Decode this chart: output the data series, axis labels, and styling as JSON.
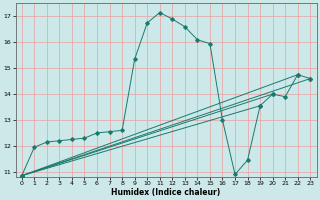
{
  "xlabel": "Humidex (Indice chaleur)",
  "bg_color": "#cce8e8",
  "grid_color": "#ff9999",
  "line_color": "#1a7a6e",
  "xlim": [
    -0.5,
    23.5
  ],
  "ylim": [
    10.8,
    17.5
  ],
  "xticks": [
    0,
    1,
    2,
    3,
    4,
    5,
    6,
    7,
    8,
    9,
    10,
    11,
    12,
    13,
    14,
    15,
    16,
    17,
    18,
    19,
    20,
    21,
    22,
    23
  ],
  "yticks": [
    11,
    12,
    13,
    14,
    15,
    16,
    17
  ],
  "series": [
    [
      0,
      10.85
    ],
    [
      1,
      11.95
    ],
    [
      2,
      12.15
    ],
    [
      3,
      12.2
    ],
    [
      4,
      12.25
    ],
    [
      5,
      12.3
    ],
    [
      6,
      12.5
    ],
    [
      7,
      12.55
    ],
    [
      8,
      12.6
    ],
    [
      9,
      15.35
    ],
    [
      10,
      16.75
    ],
    [
      11,
      17.15
    ],
    [
      12,
      16.9
    ],
    [
      13,
      16.6
    ],
    [
      14,
      16.1
    ],
    [
      15,
      15.95
    ],
    [
      16,
      13.0
    ],
    [
      17,
      10.9
    ],
    [
      18,
      11.45
    ],
    [
      19,
      13.55
    ],
    [
      20,
      14.0
    ],
    [
      21,
      13.9
    ],
    [
      22,
      14.75
    ],
    [
      23,
      14.6
    ]
  ],
  "extra_series": [
    [
      [
        0,
        10.85
      ],
      [
        23,
        14.6
      ]
    ],
    [
      [
        0,
        10.85
      ],
      [
        22,
        14.75
      ]
    ],
    [
      [
        0,
        10.85
      ],
      [
        19,
        13.55
      ]
    ],
    [
      [
        0,
        10.85
      ],
      [
        20,
        14.0
      ]
    ]
  ]
}
